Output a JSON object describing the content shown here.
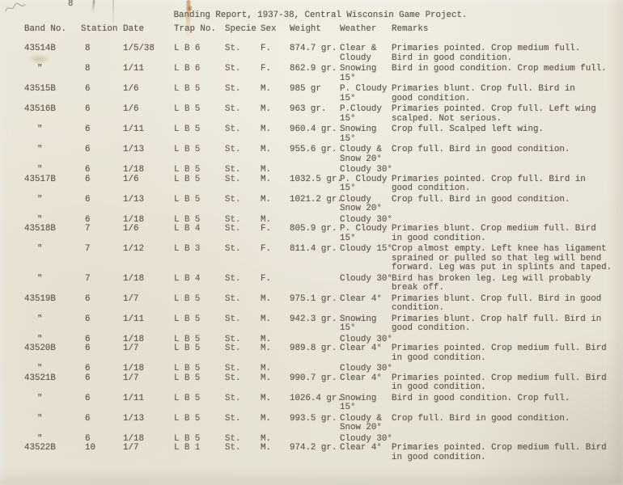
{
  "title": "Banding Report, 1937-38, Central Wisconsin Game Project.",
  "annotations": {
    "top_mark": "8"
  },
  "colors": {
    "paper": "#eae6d9",
    "ink": "#5d574c",
    "stain": "#a86e2c"
  },
  "table": {
    "headers": [
      "Band No.",
      "Station",
      "Date",
      "Trap No.",
      "Specie",
      "Sex",
      "Weight",
      "Weather",
      "Remarks"
    ],
    "rows": [
      {
        "band": "43514B",
        "station": "8",
        "date": "1/5/38",
        "trap": "L B 6",
        "specie": "St.",
        "sex": "F.",
        "weight": "874.7 gr.",
        "weather": "Clear &\nCloudy",
        "remarks": "Primaries pointed. Crop medium full.\nBird in good condition."
      },
      {
        "band": "\"",
        "station": "8",
        "date": "1/11",
        "trap": "L B 6",
        "specie": "St.",
        "sex": "F.",
        "weight": "862.9 gr.",
        "weather": "Snowing\n15°",
        "remarks": "Bird in good condition. Crop medium full."
      },
      {
        "band": "43515B",
        "station": "6",
        "date": "1/6",
        "trap": "L B 5",
        "specie": "St.",
        "sex": "M.",
        "weight": "985 gr",
        "weather": "P. Cloudy\n15°",
        "remarks": "Primaries blunt. Crop full. Bird in\ngood condition."
      },
      {
        "band": "43516B",
        "station": "6",
        "date": "1/6",
        "trap": "L B 5",
        "specie": "St.",
        "sex": "M.",
        "weight": "963 gr.",
        "weather": "P.Cloudy\n15°",
        "remarks": "Primaries pointed. Crop full. Left wing\nscalped. Not serious."
      },
      {
        "band": "\"",
        "station": "6",
        "date": "1/11",
        "trap": "L B 5",
        "specie": "St.",
        "sex": "M.",
        "weight": "960.4 gr.",
        "weather": "Snowing\n15°",
        "remarks": "Crop full. Scalped left wing."
      },
      {
        "band": "\"",
        "station": "6",
        "date": "1/13",
        "trap": "L B 5",
        "specie": "St.",
        "sex": "M.",
        "weight": "955.6 gr.",
        "weather": "Cloudy &\nSnow 20°",
        "remarks": "Crop full. Bird in good condition."
      },
      {
        "band": "\"",
        "station": "6",
        "date": "1/18",
        "trap": "L B 5",
        "specie": "St.",
        "sex": "M.",
        "weight": "",
        "weather": "Cloudy 30°",
        "remarks": "",
        "tight_after": true
      },
      {
        "band": "43517B",
        "station": "6",
        "date": "1/6",
        "trap": "L B 5",
        "specie": "St.",
        "sex": "M.",
        "weight": "1032.5 gr.",
        "weather": "P. Cloudy\n15°",
        "remarks": "Primaries pointed. Crop full. Bird in\ngood condition."
      },
      {
        "band": "\"",
        "station": "6",
        "date": "1/13",
        "trap": "L B 5",
        "specie": "St.",
        "sex": "M.",
        "weight": "1021.2 gr.",
        "weather": "Cloudy\nSnow 20°",
        "remarks": "Crop full. Bird in good condition."
      },
      {
        "band": "\"",
        "station": "6",
        "date": "1/18",
        "trap": "L B 5",
        "specie": "St.",
        "sex": "M.",
        "weight": "",
        "weather": "Cloudy 30°",
        "remarks": "",
        "tight_after": true
      },
      {
        "band": "43518B",
        "station": "7",
        "date": "1/6",
        "trap": "L B 4",
        "specie": "St.",
        "sex": "F.",
        "weight": "805.9 gr.",
        "weather": "P. Cloudy\n15°",
        "remarks": "Primaries blunt. Crop medium full. Bird\nin good condition."
      },
      {
        "band": "\"",
        "station": "7",
        "date": "1/12",
        "trap": "L B 3",
        "specie": "St.",
        "sex": "F.",
        "weight": "811.4 gr.",
        "weather": "Cloudy 15°",
        "remarks": "Crop almost empty. Left knee has ligament\nsprained or pulled so that leg will bend\nforward. Leg was put in splints and taped."
      },
      {
        "band": "\"",
        "station": "7",
        "date": "1/18",
        "trap": "L B 4",
        "specie": "St.",
        "sex": "F.",
        "weight": "",
        "weather": "Cloudy 30°",
        "remarks": "Bird has broken leg. Leg will probably\nbreak off."
      },
      {
        "band": "43519B",
        "station": "6",
        "date": "1/7",
        "trap": "L B 5",
        "specie": "St.",
        "sex": "M.",
        "weight": "975.1 gr.",
        "weather": "Clear 4°",
        "remarks": "Primaries blunt. Crop full. Bird in good\ncondition."
      },
      {
        "band": "\"",
        "station": "6",
        "date": "1/11",
        "trap": "L B 5",
        "specie": "St.",
        "sex": "M.",
        "weight": "942.3 gr.",
        "weather": "Snowing\n15°",
        "remarks": "Primaries blunt. Crop half full. Bird in\ngood condition."
      },
      {
        "band": "\"",
        "station": "6",
        "date": "1/18",
        "trap": "L B 5",
        "specie": "St.",
        "sex": "M.",
        "weight": "",
        "weather": "Cloudy 30°",
        "remarks": "",
        "tight_after": true
      },
      {
        "band": "43520B",
        "station": "6",
        "date": "1/7",
        "trap": "L B 5",
        "specie": "St.",
        "sex": "M.",
        "weight": "989.8 gr.",
        "weather": "Clear 4°",
        "remarks": "Primaries pointed. Crop medium full. Bird\nin good condition."
      },
      {
        "band": "\"",
        "station": "6",
        "date": "1/18",
        "trap": "L B 5",
        "specie": "St.",
        "sex": "M.",
        "weight": "",
        "weather": "Cloudy 30°",
        "remarks": "",
        "tight_after": true
      },
      {
        "band": "43521B",
        "station": "6",
        "date": "1/7",
        "trap": "L B 5",
        "specie": "St.",
        "sex": "M.",
        "weight": "990.7 gr.",
        "weather": "Clear 4°",
        "remarks": "Primaries pointed. Crop medium full. Bird\nin good condition."
      },
      {
        "band": "\"",
        "station": "6",
        "date": "1/11",
        "trap": "L B 5",
        "specie": "St.",
        "sex": "M.",
        "weight": "1026.4 gr.",
        "weather": "Snowing\n15°",
        "remarks": "Bird in good condition. Crop full."
      },
      {
        "band": "\"",
        "station": "6",
        "date": "1/13",
        "trap": "L B 5",
        "specie": "St.",
        "sex": "M.",
        "weight": "993.5 gr.",
        "weather": "Cloudy &\nSnow 20°",
        "remarks": "Crop full. Bird in good condition."
      },
      {
        "band": "\"",
        "station": "6",
        "date": "1/18",
        "trap": "L B 5",
        "specie": "St.",
        "sex": "M.",
        "weight": "",
        "weather": "Cloudy 30°",
        "remarks": "",
        "tight_after": true
      },
      {
        "band": "43522B",
        "station": "10",
        "date": "1/7",
        "trap": "L B 1",
        "specie": "St.",
        "sex": "M.",
        "weight": "974.2 gr.",
        "weather": "Clear 4°",
        "remarks": "Primaries pointed. Crop medium full. Bird\nin good condition."
      }
    ]
  }
}
